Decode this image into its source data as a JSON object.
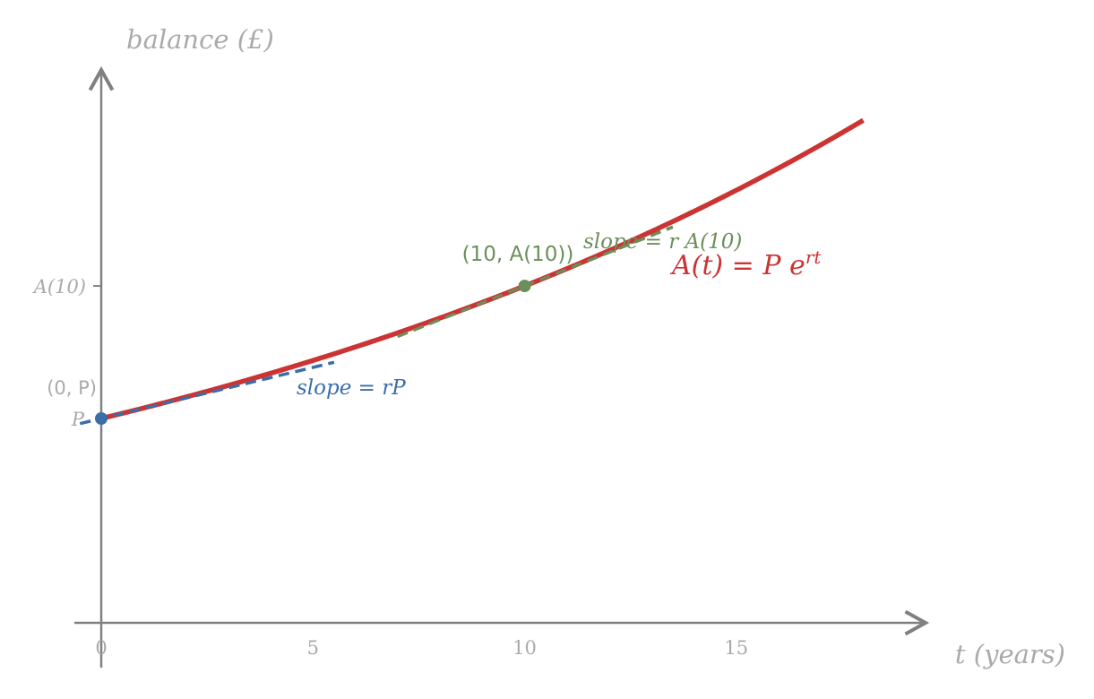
{
  "chart_data": {
    "type": "line",
    "xlabel": "t (years)",
    "ylabel": "balance (£)",
    "x_ticks": [
      "0",
      "5",
      "10",
      "15"
    ],
    "y_ticks": [
      "P",
      "A(10)"
    ],
    "xlim": [
      -0.6,
      19.5
    ],
    "ylim": [
      0.0,
      2.5
    ],
    "P": 0.6,
    "r": 0.05,
    "t_end": 18,
    "series": [
      {
        "name": "A(t) = P e^{rt}",
        "label_parts": [
          "A(t) = P e",
          "rt"
        ],
        "color": "#cc3333",
        "x": [
          0,
          2,
          4,
          6,
          8,
          10,
          12,
          14,
          16,
          18
        ],
        "y": [
          0.6,
          0.663,
          0.733,
          0.81,
          0.895,
          0.989,
          1.093,
          1.208,
          1.335,
          1.476
        ]
      }
    ],
    "tangent_at_0": {
      "label": "slope = rP",
      "color": "#3b6ea8",
      "x_range": [
        -0.5,
        5.5
      ],
      "style": "dashed"
    },
    "tangent_at_10": {
      "label": "slope = r A(10)",
      "color": "#6b8f5a",
      "x_range": [
        7.0,
        13.5
      ],
      "style": "dashed"
    },
    "points": [
      {
        "x": 0,
        "label": "(0, P)",
        "color": "#3b6ea8"
      },
      {
        "x": 10,
        "label": "(10, A(10))",
        "color": "#6b8f5a"
      }
    ],
    "grid": false,
    "axis_color": "#808080",
    "label_color": "#aaaaaa"
  }
}
